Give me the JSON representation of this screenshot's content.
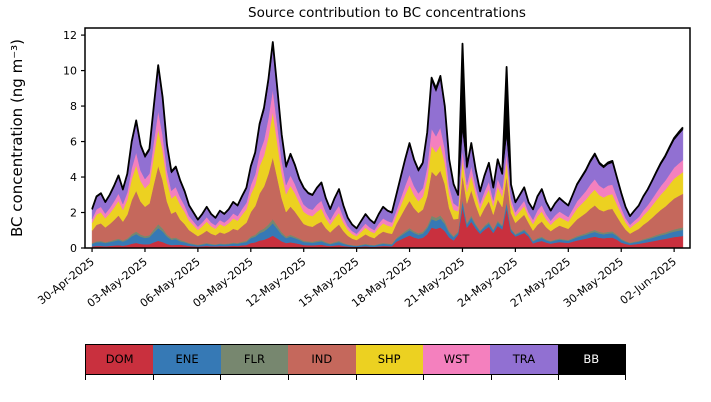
{
  "chart_data": {
    "type": "area",
    "stacked": true,
    "title": "Source contribution to BC concentrations",
    "xlabel": "",
    "ylabel": "BC concentration (ng m⁻³)",
    "ylim": [
      0,
      12.4
    ],
    "xlim_days": [
      -0.4,
      33.9
    ],
    "y_ticks": [
      0,
      2,
      4,
      6,
      8,
      10,
      12
    ],
    "x_unit": "days since 30-Apr-2025 00:00, 6-hour resolution",
    "x_start_day": 0,
    "x_step_days": 0.25,
    "x_tick_days": [
      0,
      3,
      6,
      9,
      12,
      15,
      18,
      21,
      24,
      27,
      30,
      33
    ],
    "x_tick_labels": [
      "30-Apr-2025",
      "03-May-2025",
      "06-May-2025",
      "09-May-2025",
      "12-May-2025",
      "15-May-2025",
      "18-May-2025",
      "21-May-2025",
      "24-May-2025",
      "27-May-2025",
      "30-May-2025",
      "02-Jun-2025"
    ],
    "grid": false,
    "legend_position": "bottom",
    "total_line_color": "#000000",
    "series": [
      {
        "name": "DOM",
        "color": "#c9303e",
        "label_color": "#000000",
        "values": [
          0.09,
          0.12,
          0.12,
          0.1,
          0.12,
          0.14,
          0.16,
          0.13,
          0.17,
          0.24,
          0.29,
          0.23,
          0.21,
          0.22,
          0.32,
          0.41,
          0.34,
          0.23,
          0.17,
          0.18,
          0.19,
          0.16,
          0.12,
          0.1,
          0.08,
          0.1,
          0.12,
          0.1,
          0.09,
          0.11,
          0.1,
          0.11,
          0.13,
          0.12,
          0.15,
          0.17,
          0.28,
          0.32,
          0.42,
          0.47,
          0.57,
          0.7,
          0.54,
          0.38,
          0.28,
          0.32,
          0.28,
          0.23,
          0.17,
          0.16,
          0.15,
          0.17,
          0.19,
          0.14,
          0.11,
          0.14,
          0.17,
          0.12,
          0.09,
          0.07,
          0.06,
          0.08,
          0.1,
          0.08,
          0.07,
          0.1,
          0.12,
          0.11,
          0.1,
          0.36,
          0.48,
          0.6,
          0.71,
          0.6,
          0.53,
          0.58,
          0.78,
          1.15,
          1.08,
          1.16,
          0.96,
          0.6,
          0.43,
          0.75,
          2.3,
          1.15,
          1.48,
          1.1,
          0.8,
          1.03,
          1.2,
          0.85,
          1.25,
          1.05,
          2.24,
          0.9,
          0.65,
          0.75,
          0.85,
          0.65,
          0.26,
          0.35,
          0.4,
          0.31,
          0.25,
          0.3,
          0.34,
          0.31,
          0.29,
          0.36,
          0.43,
          0.48,
          0.53,
          0.59,
          0.64,
          0.58,
          0.55,
          0.58,
          0.59,
          0.48,
          0.31,
          0.23,
          0.18,
          0.21,
          0.24,
          0.29,
          0.33,
          0.38,
          0.43,
          0.48,
          0.52,
          0.57,
          0.62,
          0.65,
          0.68
        ]
      },
      {
        "name": "ENE",
        "color": "#3679b5",
        "label_color": "#000000",
        "values": [
          0.15,
          0.2,
          0.22,
          0.18,
          0.21,
          0.25,
          0.29,
          0.23,
          0.29,
          0.42,
          0.5,
          0.41,
          0.36,
          0.39,
          0.56,
          0.72,
          0.6,
          0.41,
          0.3,
          0.32,
          0.19,
          0.16,
          0.12,
          0.1,
          0.08,
          0.1,
          0.12,
          0.1,
          0.09,
          0.11,
          0.1,
          0.11,
          0.13,
          0.12,
          0.15,
          0.17,
          0.28,
          0.32,
          0.42,
          0.47,
          0.57,
          0.7,
          0.54,
          0.38,
          0.28,
          0.32,
          0.28,
          0.23,
          0.17,
          0.16,
          0.15,
          0.17,
          0.19,
          0.14,
          0.11,
          0.14,
          0.17,
          0.12,
          0.09,
          0.07,
          0.06,
          0.08,
          0.1,
          0.08,
          0.07,
          0.1,
          0.12,
          0.11,
          0.1,
          0.15,
          0.2,
          0.25,
          0.3,
          0.25,
          0.22,
          0.24,
          0.33,
          0.48,
          0.45,
          0.49,
          0.4,
          0.25,
          0.18,
          0.12,
          0.35,
          0.18,
          0.24,
          0.18,
          0.13,
          0.16,
          0.19,
          0.14,
          0.2,
          0.17,
          0.31,
          0.14,
          0.1,
          0.12,
          0.14,
          0.1,
          0.11,
          0.15,
          0.17,
          0.13,
          0.11,
          0.13,
          0.14,
          0.13,
          0.12,
          0.15,
          0.18,
          0.2,
          0.22,
          0.25,
          0.27,
          0.24,
          0.23,
          0.24,
          0.25,
          0.2,
          0.16,
          0.12,
          0.09,
          0.11,
          0.12,
          0.15,
          0.17,
          0.19,
          0.22,
          0.24,
          0.26,
          0.29,
          0.31,
          0.33,
          0.34
        ]
      },
      {
        "name": "FLR",
        "color": "#77876f",
        "label_color": "#000000",
        "values": [
          0.04,
          0.06,
          0.06,
          0.05,
          0.06,
          0.07,
          0.08,
          0.07,
          0.08,
          0.12,
          0.14,
          0.12,
          0.1,
          0.11,
          0.16,
          0.21,
          0.17,
          0.12,
          0.09,
          0.09,
          0.08,
          0.06,
          0.05,
          0.04,
          0.03,
          0.04,
          0.05,
          0.04,
          0.03,
          0.04,
          0.04,
          0.04,
          0.05,
          0.05,
          0.06,
          0.07,
          0.09,
          0.11,
          0.14,
          0.16,
          0.19,
          0.23,
          0.18,
          0.13,
          0.09,
          0.11,
          0.09,
          0.08,
          0.07,
          0.06,
          0.06,
          0.07,
          0.07,
          0.06,
          0.04,
          0.06,
          0.07,
          0.05,
          0.03,
          0.03,
          0.02,
          0.03,
          0.04,
          0.03,
          0.03,
          0.04,
          0.05,
          0.04,
          0.04,
          0.06,
          0.08,
          0.1,
          0.12,
          0.1,
          0.09,
          0.1,
          0.13,
          0.19,
          0.18,
          0.19,
          0.16,
          0.1,
          0.07,
          0.06,
          0.12,
          0.09,
          0.12,
          0.09,
          0.06,
          0.08,
          0.1,
          0.07,
          0.1,
          0.08,
          0.1,
          0.07,
          0.05,
          0.06,
          0.07,
          0.05,
          0.04,
          0.06,
          0.07,
          0.05,
          0.04,
          0.05,
          0.06,
          0.05,
          0.05,
          0.06,
          0.07,
          0.08,
          0.09,
          0.1,
          0.11,
          0.1,
          0.09,
          0.1,
          0.1,
          0.08,
          0.06,
          0.05,
          0.04,
          0.04,
          0.05,
          0.06,
          0.07,
          0.08,
          0.09,
          0.1,
          0.1,
          0.11,
          0.12,
          0.13,
          0.14
        ]
      },
      {
        "name": "IND",
        "color": "#c5685c",
        "label_color": "#000000",
        "values": [
          0.7,
          0.93,
          0.99,
          0.83,
          0.96,
          1.12,
          1.31,
          1.06,
          1.34,
          1.92,
          2.3,
          1.86,
          1.66,
          1.79,
          2.56,
          3.3,
          2.72,
          1.86,
          1.38,
          1.47,
          1.14,
          0.96,
          0.72,
          0.6,
          0.48,
          0.57,
          0.69,
          0.57,
          0.51,
          0.63,
          0.57,
          0.66,
          0.78,
          0.72,
          0.87,
          1.02,
          1.38,
          1.62,
          2.1,
          2.37,
          2.85,
          3.48,
          2.7,
          1.92,
          1.38,
          1.59,
          1.41,
          1.17,
          0.95,
          0.87,
          0.84,
          0.95,
          1.04,
          0.78,
          0.62,
          0.78,
          0.92,
          0.67,
          0.48,
          0.36,
          0.31,
          0.42,
          0.53,
          0.45,
          0.39,
          0.53,
          0.64,
          0.59,
          0.56,
          0.78,
          1.04,
          1.3,
          1.53,
          1.3,
          1.14,
          1.25,
          1.69,
          2.5,
          2.34,
          2.52,
          2.08,
          1.3,
          0.94,
          0.72,
          1.38,
          1.1,
          1.42,
          1.06,
          0.77,
          0.98,
          1.15,
          0.82,
          1.2,
          1.01,
          1.43,
          0.86,
          0.62,
          0.72,
          0.82,
          0.62,
          0.57,
          0.75,
          0.86,
          0.68,
          0.55,
          0.65,
          0.73,
          0.68,
          0.62,
          0.78,
          0.94,
          1.04,
          1.14,
          1.27,
          1.38,
          1.25,
          1.2,
          1.25,
          1.27,
          1.04,
          0.87,
          0.64,
          0.5,
          0.59,
          0.67,
          0.81,
          0.92,
          1.06,
          1.2,
          1.34,
          1.46,
          1.6,
          1.74,
          1.82,
          1.9
        ]
      },
      {
        "name": "SHP",
        "color": "#ecd121",
        "label_color": "#000000",
        "values": [
          0.44,
          0.58,
          0.62,
          0.52,
          0.6,
          0.7,
          0.82,
          0.66,
          0.84,
          1.2,
          1.44,
          1.16,
          1.04,
          1.12,
          1.6,
          2.06,
          1.7,
          1.16,
          0.86,
          0.92,
          0.84,
          0.7,
          0.53,
          0.44,
          0.35,
          0.42,
          0.51,
          0.42,
          0.37,
          0.46,
          0.42,
          0.48,
          0.57,
          0.53,
          0.64,
          0.75,
          1.01,
          1.19,
          1.54,
          1.74,
          2.09,
          2.55,
          1.98,
          1.41,
          1.01,
          1.17,
          1.03,
          0.86,
          0.68,
          0.62,
          0.6,
          0.68,
          0.74,
          0.56,
          0.44,
          0.56,
          0.66,
          0.48,
          0.34,
          0.26,
          0.22,
          0.3,
          0.38,
          0.32,
          0.28,
          0.38,
          0.46,
          0.42,
          0.4,
          0.45,
          0.6,
          0.75,
          0.89,
          0.75,
          0.66,
          0.72,
          0.98,
          1.44,
          1.35,
          1.46,
          1.2,
          0.75,
          0.54,
          0.42,
          0.81,
          0.64,
          0.83,
          0.62,
          0.45,
          0.57,
          0.67,
          0.48,
          0.7,
          0.59,
          0.82,
          0.5,
          0.36,
          0.42,
          0.48,
          0.36,
          0.37,
          0.49,
          0.56,
          0.44,
          0.36,
          0.43,
          0.48,
          0.44,
          0.41,
          0.51,
          0.61,
          0.68,
          0.75,
          0.83,
          0.9,
          0.82,
          0.78,
          0.82,
          0.83,
          0.68,
          0.56,
          0.41,
          0.32,
          0.38,
          0.43,
          0.52,
          0.59,
          0.68,
          0.77,
          0.86,
          0.94,
          1.03,
          1.12,
          1.17,
          1.22
        ]
      },
      {
        "name": "WST",
        "color": "#f480be",
        "label_color": "#000000",
        "values": [
          0.22,
          0.29,
          0.31,
          0.26,
          0.3,
          0.35,
          0.41,
          0.33,
          0.42,
          0.6,
          0.72,
          0.58,
          0.52,
          0.56,
          0.8,
          1.03,
          0.85,
          0.58,
          0.43,
          0.46,
          0.42,
          0.35,
          0.26,
          0.22,
          0.18,
          0.21,
          0.25,
          0.21,
          0.19,
          0.23,
          0.21,
          0.24,
          0.29,
          0.26,
          0.32,
          0.37,
          0.51,
          0.59,
          0.77,
          0.87,
          1.05,
          1.28,
          0.99,
          0.7,
          0.51,
          0.58,
          0.52,
          0.43,
          0.41,
          0.37,
          0.36,
          0.41,
          0.44,
          0.34,
          0.26,
          0.34,
          0.4,
          0.29,
          0.2,
          0.16,
          0.13,
          0.18,
          0.23,
          0.19,
          0.17,
          0.23,
          0.28,
          0.25,
          0.24,
          0.3,
          0.4,
          0.5,
          0.59,
          0.5,
          0.44,
          0.48,
          0.65,
          0.96,
          0.9,
          0.97,
          0.8,
          0.5,
          0.36,
          0.27,
          0.58,
          0.41,
          0.53,
          0.4,
          0.29,
          0.37,
          0.43,
          0.31,
          0.45,
          0.38,
          0.51,
          0.32,
          0.23,
          0.27,
          0.31,
          0.23,
          0.24,
          0.32,
          0.36,
          0.29,
          0.23,
          0.28,
          0.31,
          0.29,
          0.26,
          0.33,
          0.4,
          0.44,
          0.48,
          0.54,
          0.58,
          0.53,
          0.51,
          0.53,
          0.54,
          0.44,
          0.31,
          0.23,
          0.18,
          0.21,
          0.24,
          0.29,
          0.33,
          0.38,
          0.43,
          0.48,
          0.52,
          0.57,
          0.62,
          0.65,
          0.68
        ]
      },
      {
        "name": "TRA",
        "color": "#9170d2",
        "label_color": "#000000",
        "values": [
          0.51,
          0.67,
          0.71,
          0.6,
          0.69,
          0.81,
          0.94,
          0.76,
          0.97,
          1.38,
          1.66,
          1.33,
          1.2,
          1.29,
          1.84,
          2.37,
          1.96,
          1.33,
          0.99,
          1.06,
          0.87,
          0.74,
          0.55,
          0.46,
          0.37,
          0.44,
          0.53,
          0.44,
          0.39,
          0.48,
          0.44,
          0.51,
          0.6,
          0.55,
          0.67,
          0.78,
          0.97,
          1.13,
          1.47,
          1.66,
          2.0,
          2.44,
          1.89,
          1.34,
          0.97,
          1.11,
          0.99,
          0.82,
          0.88,
          0.81,
          0.78,
          0.88,
          0.96,
          0.73,
          0.57,
          0.73,
          0.86,
          0.62,
          0.44,
          0.34,
          0.29,
          0.39,
          0.49,
          0.42,
          0.36,
          0.49,
          0.6,
          0.55,
          0.52,
          0.84,
          1.12,
          1.4,
          1.65,
          1.4,
          1.23,
          1.34,
          1.82,
          2.69,
          2.52,
          2.72,
          2.24,
          1.4,
          1.01,
          0.6,
          1.15,
          0.92,
          1.18,
          0.88,
          0.64,
          0.82,
          0.96,
          0.68,
          1.0,
          0.84,
          0.92,
          0.72,
          0.52,
          0.6,
          0.68,
          0.52,
          0.55,
          0.73,
          0.83,
          0.65,
          0.53,
          0.63,
          0.7,
          0.65,
          0.6,
          0.75,
          0.9,
          1.0,
          1.1,
          1.23,
          1.33,
          1.2,
          1.15,
          1.2,
          1.23,
          1.0,
          0.78,
          0.58,
          0.45,
          0.53,
          0.6,
          0.73,
          0.83,
          0.95,
          1.08,
          1.2,
          1.3,
          1.43,
          1.55,
          1.63,
          1.7
        ]
      },
      {
        "name": "BB",
        "color": "#000000",
        "label_color": "#ffffff",
        "values": [
          0.04,
          0.06,
          0.06,
          0.05,
          0.06,
          0.07,
          0.08,
          0.07,
          0.08,
          0.12,
          0.14,
          0.12,
          0.1,
          0.11,
          0.16,
          0.21,
          0.17,
          0.12,
          0.09,
          0.09,
          0.08,
          0.06,
          0.05,
          0.04,
          0.03,
          0.04,
          0.05,
          0.04,
          0.03,
          0.04,
          0.04,
          0.04,
          0.05,
          0.05,
          0.06,
          0.07,
          0.09,
          0.11,
          0.14,
          0.16,
          0.19,
          0.23,
          0.18,
          0.13,
          0.09,
          0.11,
          0.09,
          0.08,
          0.07,
          0.06,
          0.06,
          0.07,
          0.07,
          0.06,
          0.04,
          0.06,
          0.07,
          0.05,
          0.03,
          0.03,
          0.02,
          0.03,
          0.04,
          0.03,
          0.03,
          0.04,
          0.05,
          0.04,
          0.04,
          0.06,
          0.08,
          0.1,
          0.12,
          0.1,
          0.09,
          0.1,
          0.13,
          0.19,
          0.18,
          0.19,
          0.16,
          0.1,
          0.07,
          0.06,
          4.83,
          0.09,
          0.12,
          0.09,
          0.06,
          0.08,
          0.1,
          0.07,
          0.1,
          0.08,
          3.88,
          0.07,
          0.05,
          0.06,
          0.07,
          0.05,
          0.04,
          0.06,
          0.07,
          0.05,
          0.04,
          0.05,
          0.06,
          0.05,
          0.05,
          0.06,
          0.07,
          0.08,
          0.09,
          0.1,
          0.11,
          0.1,
          0.09,
          0.1,
          0.1,
          0.08,
          0.06,
          0.05,
          0.04,
          0.04,
          0.05,
          0.06,
          0.07,
          0.08,
          0.09,
          0.1,
          0.1,
          0.11,
          0.12,
          0.13,
          0.14
        ]
      }
    ]
  }
}
